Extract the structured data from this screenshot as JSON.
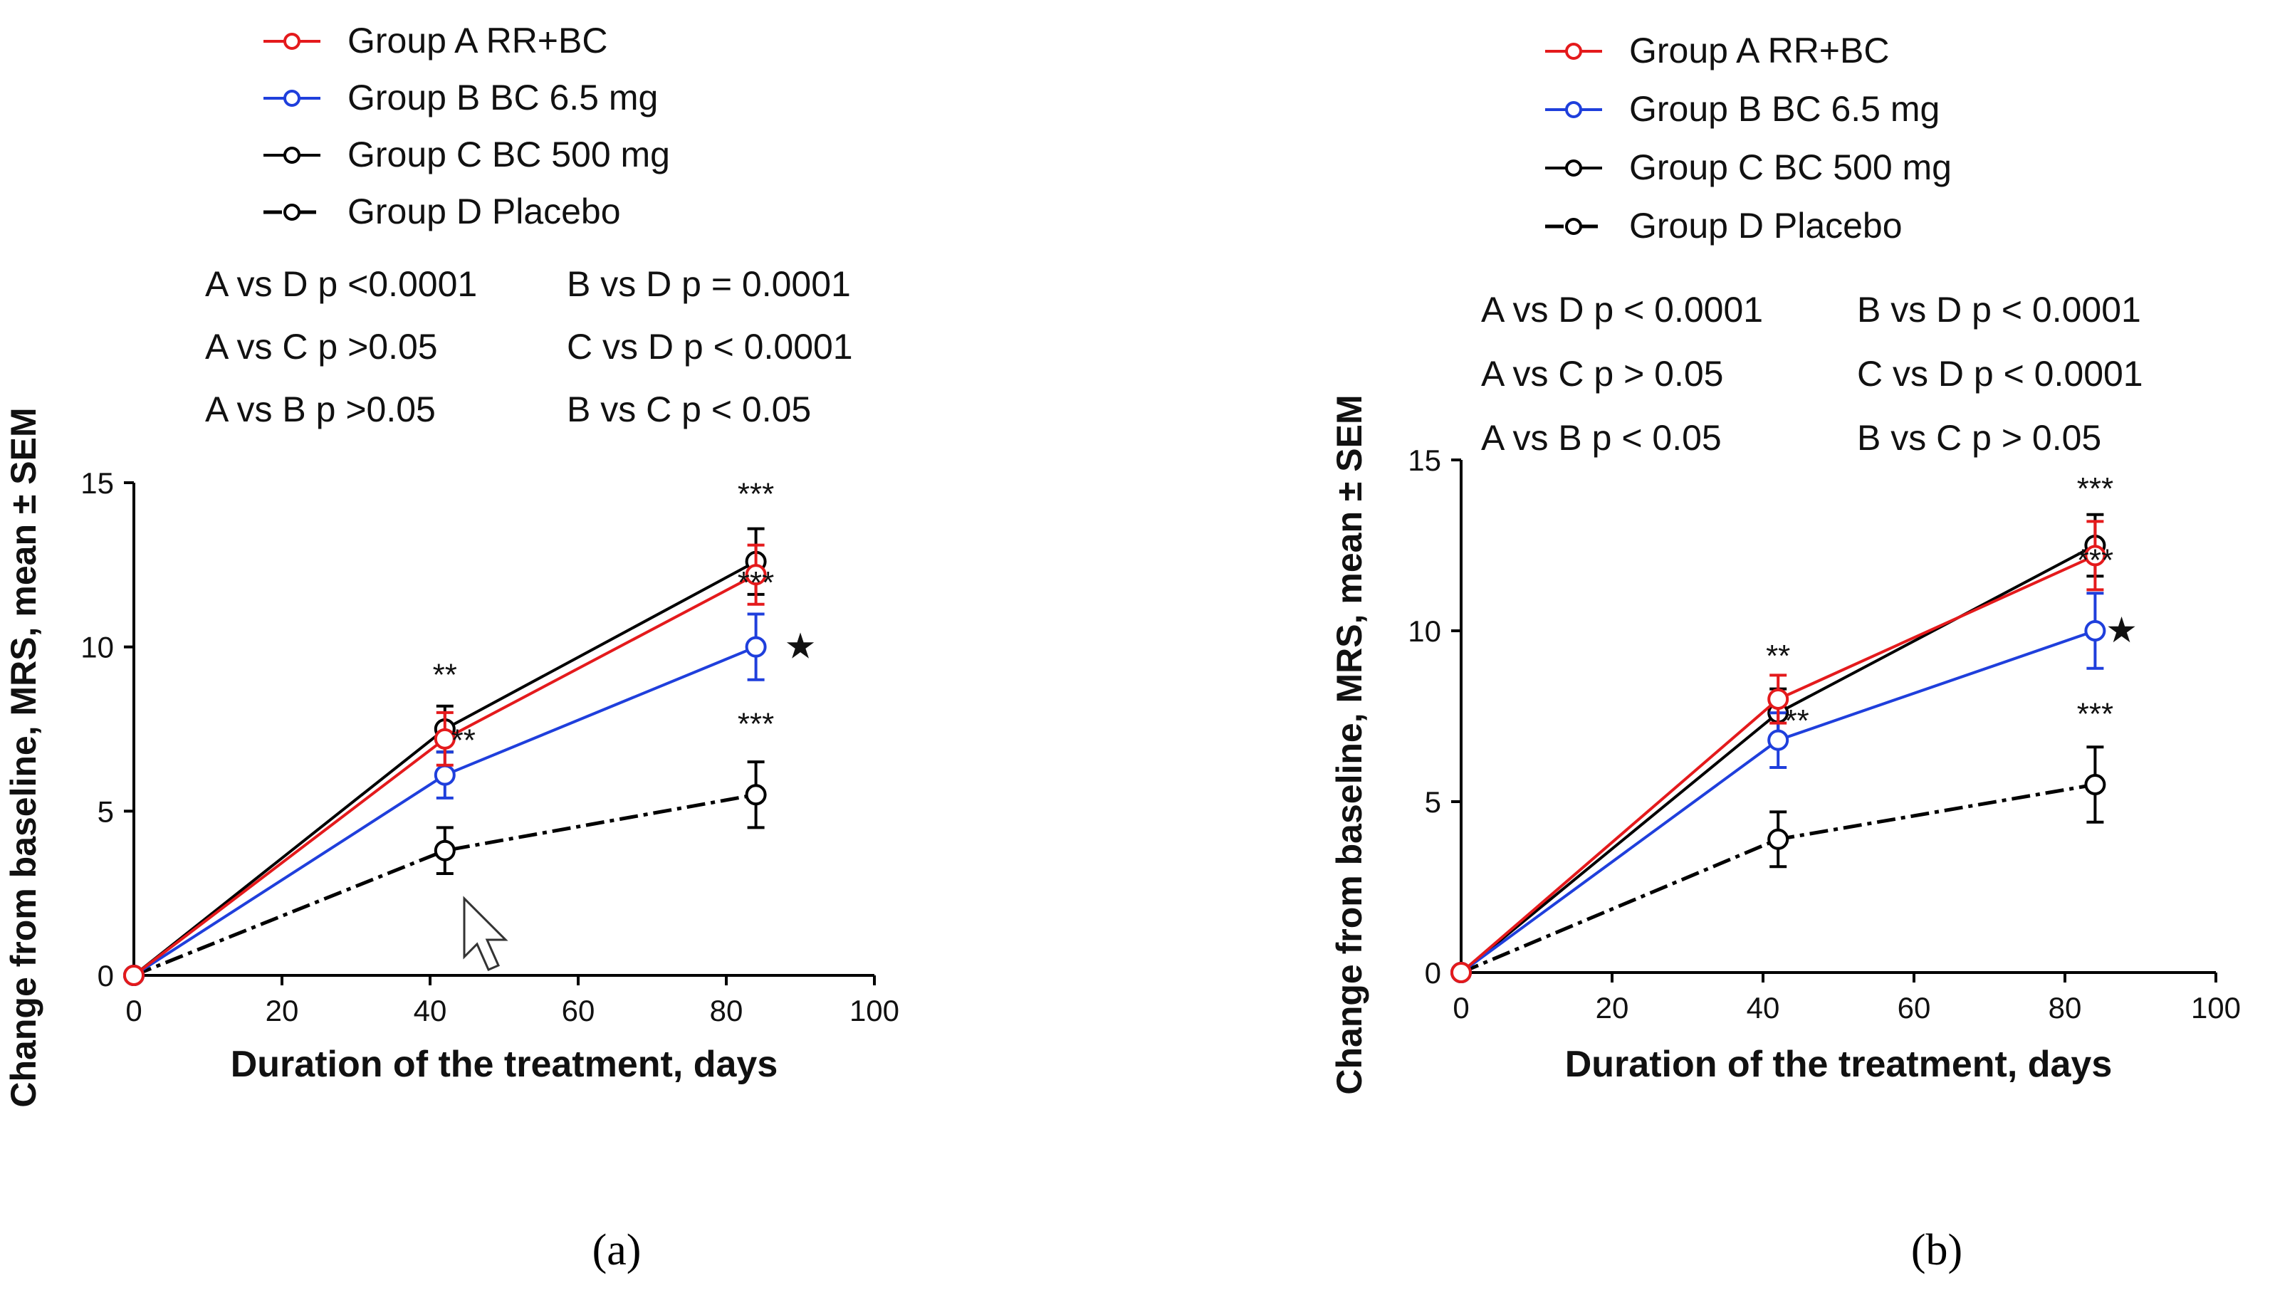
{
  "colors": {
    "group_a": "#e41a1c",
    "group_b": "#1f3fdc",
    "group_c": "#000000",
    "group_d": "#000000",
    "axis": "#000000",
    "cursor": "#ffffff"
  },
  "chart_data": [
    {
      "type": "line",
      "panel_label": "(a)",
      "xlabel": "Duration of the treatment, days",
      "ylabel": "Change from baseline, MRS, mean ± SEM",
      "xlim": [
        0,
        100
      ],
      "ylim": [
        0,
        15
      ],
      "xticks": [
        "0",
        "20",
        "40",
        "60",
        "80",
        "100"
      ],
      "yticks": [
        "0",
        "5",
        "10",
        "15"
      ],
      "legend": [
        "Group A RR+BC",
        "Group B BC 6.5 mg",
        "Group C BC 500 mg",
        "Group D Placebo"
      ],
      "stats": [
        [
          "A vs D p <0.0001",
          "B vs D p = 0.0001"
        ],
        [
          "A vs C p >0.05",
          "C vs D p < 0.0001"
        ],
        [
          "A vs B p >0.05",
          "B vs C p < 0.05"
        ]
      ],
      "series": [
        {
          "name": "Group A RR+BC",
          "x": [
            0,
            42,
            84
          ],
          "y": [
            0,
            7.2,
            12.2
          ],
          "err": [
            0,
            0.8,
            0.9
          ]
        },
        {
          "name": "Group B BC 6.5 mg",
          "x": [
            0,
            42,
            84
          ],
          "y": [
            0,
            6.1,
            10.0
          ],
          "err": [
            0,
            0.7,
            1.0
          ]
        },
        {
          "name": "Group C BC 500 mg",
          "x": [
            0,
            42,
            84
          ],
          "y": [
            0,
            7.5,
            12.6
          ],
          "err": [
            0,
            0.7,
            1.0
          ]
        },
        {
          "name": "Group D Placebo",
          "x": [
            0,
            42,
            84
          ],
          "y": [
            0,
            3.8,
            5.5
          ],
          "err": [
            0,
            0.7,
            1.0
          ]
        }
      ],
      "annotations": [
        {
          "text": "**",
          "x": 42,
          "y": 9.4
        },
        {
          "text": "**",
          "x": 44.5,
          "y": 7.4
        },
        {
          "text": "***",
          "x": 84,
          "y": 14.9
        },
        {
          "text": "***",
          "x": 84,
          "y": 12.2
        },
        {
          "text": "★",
          "x": 90,
          "y": 10.0
        },
        {
          "text": "***",
          "x": 84,
          "y": 7.9
        }
      ]
    },
    {
      "type": "line",
      "panel_label": "(b)",
      "xlabel": "Duration of the treatment, days",
      "ylabel": "Change from baseline, MRS, mean ± SEM",
      "xlim": [
        0,
        100
      ],
      "ylim": [
        0,
        15
      ],
      "xticks": [
        "0",
        "20",
        "40",
        "60",
        "80",
        "100"
      ],
      "yticks": [
        "0",
        "5",
        "10",
        "15"
      ],
      "legend": [
        "Group A RR+BC",
        "Group B BC 6.5 mg",
        "Group C BC 500 mg",
        "Group D Placebo"
      ],
      "stats": [
        [
          "A vs D p < 0.0001",
          "B vs D p < 0.0001"
        ],
        [
          "A vs C p > 0.05",
          "C vs D p < 0.0001"
        ],
        [
          "A vs B p < 0.05",
          "B vs C p > 0.05"
        ]
      ],
      "series": [
        {
          "name": "Group A RR+BC",
          "x": [
            0,
            42,
            84
          ],
          "y": [
            0,
            8.0,
            12.2
          ],
          "err": [
            0,
            0.7,
            1.0
          ]
        },
        {
          "name": "Group B BC 6.5 mg",
          "x": [
            0,
            42,
            84
          ],
          "y": [
            0,
            6.8,
            10.0
          ],
          "err": [
            0,
            0.8,
            1.1
          ]
        },
        {
          "name": "Group C BC 500 mg",
          "x": [
            0,
            42,
            84
          ],
          "y": [
            0,
            7.6,
            12.5
          ],
          "err": [
            0,
            0.7,
            0.9
          ]
        },
        {
          "name": "Group D Placebo",
          "x": [
            0,
            42,
            84
          ],
          "y": [
            0,
            3.9,
            5.5
          ],
          "err": [
            0,
            0.8,
            1.1
          ]
        }
      ],
      "annotations": [
        {
          "text": "**",
          "x": 42,
          "y": 9.5
        },
        {
          "text": "**",
          "x": 44.5,
          "y": 7.6
        },
        {
          "text": "***",
          "x": 84,
          "y": 14.4
        },
        {
          "text": "***",
          "x": 84,
          "y": 12.3
        },
        {
          "text": "★",
          "x": 87.5,
          "y": 10.0
        },
        {
          "text": "***",
          "x": 84,
          "y": 7.8
        }
      ]
    }
  ]
}
